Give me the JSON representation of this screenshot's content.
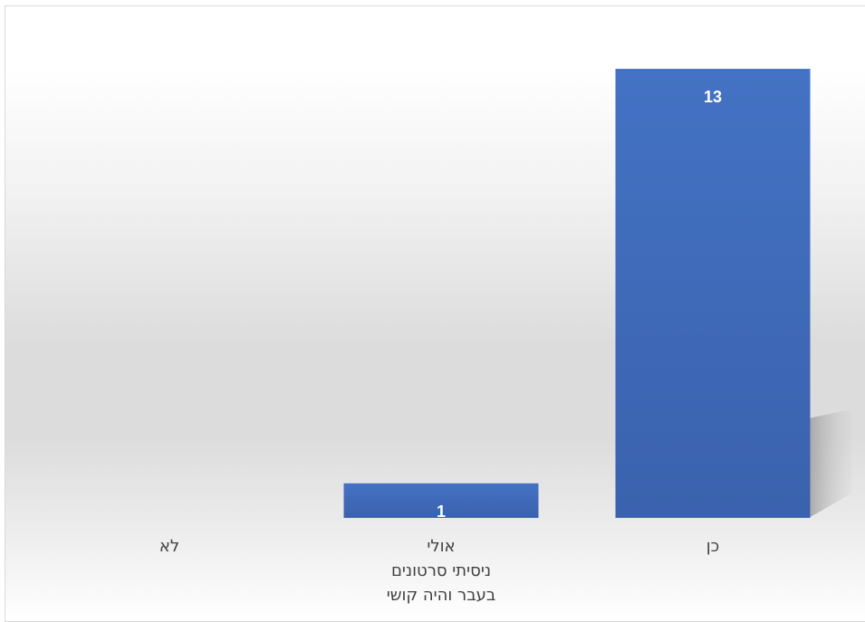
{
  "chart_data": {
    "type": "bar",
    "categories": [
      [
        "כן"
      ],
      [
        "אולי",
        "ניסיתי סרטונים",
        "בעבר והיה קושי"
      ],
      [
        "לא"
      ]
    ],
    "values": [
      13,
      1,
      0
    ],
    "data_labels": [
      "13",
      "1",
      ""
    ],
    "title": "",
    "xlabel": "",
    "ylabel": "",
    "ylim": [
      0,
      14
    ],
    "grid": false,
    "legend": "none",
    "bar_color_top": "#4472c4",
    "bar_color_bottom": "#3a62ad"
  }
}
